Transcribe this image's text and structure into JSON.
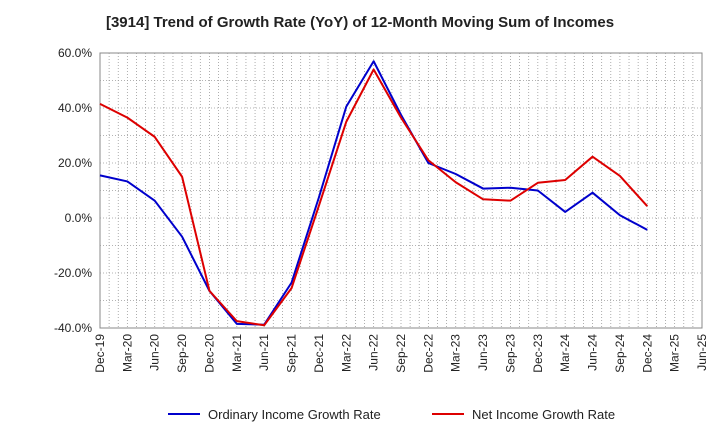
{
  "chart_data": {
    "type": "line",
    "title": "[3914]  Trend of Growth Rate (YoY) of 12-Month Moving Sum of Incomes",
    "xlabel": "",
    "ylabel": "",
    "y_unit": "%",
    "ylim": [
      -40,
      60
    ],
    "y_ticks": [
      "60.0%",
      "40.0%",
      "20.0%",
      "0.0%",
      "-20.0%",
      "-40.0%"
    ],
    "y_tick_values": [
      60,
      40,
      20,
      0,
      -20,
      -40
    ],
    "x_tick_labels": [
      "Dec-19",
      "Mar-20",
      "Jun-20",
      "Sep-20",
      "Dec-20",
      "Mar-21",
      "Jun-21",
      "Sep-21",
      "Dec-21",
      "Mar-22",
      "Jun-22",
      "Sep-22",
      "Dec-22",
      "Mar-23",
      "Jun-23",
      "Sep-23",
      "Dec-23",
      "Mar-24",
      "Jun-24",
      "Sep-24",
      "Dec-24",
      "Mar-25",
      "Jun-25"
    ],
    "x": [
      "Dec-19",
      "Mar-20",
      "Jun-20",
      "Sep-20",
      "Dec-20",
      "Mar-21",
      "Jun-21",
      "Sep-21",
      "Dec-21",
      "Mar-22",
      "Jun-22",
      "Sep-22",
      "Dec-22",
      "Mar-23",
      "Jun-23",
      "Sep-23",
      "Dec-23",
      "Mar-24",
      "Jun-24",
      "Sep-24",
      "Dec-24"
    ],
    "grid": true,
    "legend_position": "bottom",
    "series": [
      {
        "name": "Ordinary Income Growth Rate",
        "color": "#0000cc",
        "values": [
          15.5,
          13.3,
          6.3,
          -6.8,
          -26.5,
          -38.5,
          -38.8,
          -23.5,
          7.5,
          40.5,
          57.0,
          37.5,
          20.0,
          16.0,
          10.7,
          11.0,
          10.0,
          2.2,
          9.2,
          1.0,
          -4.3
        ]
      },
      {
        "name": "Net Income Growth Rate",
        "color": "#dd0000",
        "values": [
          41.5,
          36.5,
          29.5,
          15.0,
          -26.5,
          -37.5,
          -39.0,
          -25.5,
          4.5,
          35.0,
          54.0,
          36.5,
          21.0,
          13.0,
          6.8,
          6.3,
          12.8,
          13.8,
          22.3,
          15.3,
          4.3
        ]
      }
    ]
  }
}
